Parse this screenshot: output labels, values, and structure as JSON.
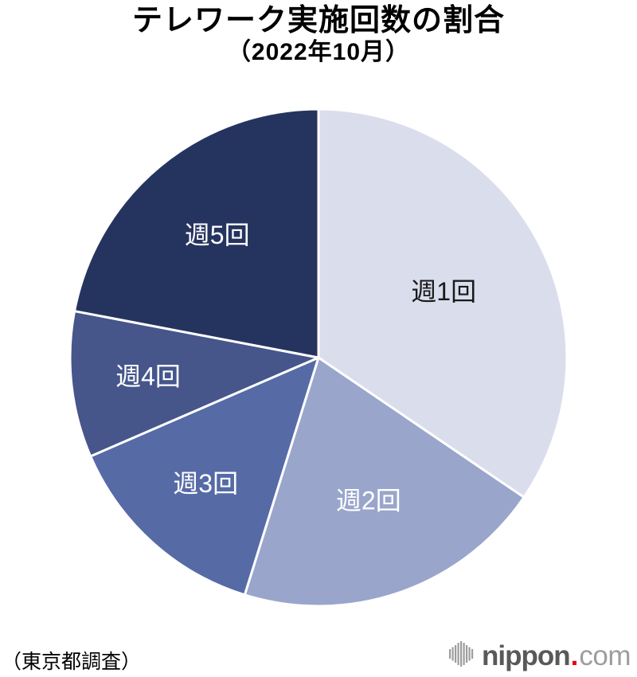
{
  "title": "テレワーク実施回数の割合",
  "subtitle": "（2022年10月）",
  "source_note": "（東京都調査）",
  "logo": {
    "name": "nippon.com",
    "text_main": "nippon",
    "dot": ".",
    "text_suffix": "com",
    "main_color": "#595959",
    "suffix_color": "#9d9d9d",
    "dot_color": "#e60012",
    "icon_color": "#9d9d9d"
  },
  "chart_data": {
    "type": "pie",
    "title": "テレワーク実施回数の割合（2022年10月）",
    "labels": [
      "週1回",
      "週2回",
      "週3回",
      "週4回",
      "週5回"
    ],
    "values": [
      34.5,
      20.3,
      13.7,
      9.5,
      22.0
    ],
    "unit": "%",
    "colors": [
      "#dadeec",
      "#99a5cb",
      "#566aa6",
      "#46568b",
      "#25345f"
    ],
    "label_colors": [
      "#1a1a1a",
      "#ffffff",
      "#ffffff",
      "#ffffff",
      "#ffffff"
    ],
    "start_angle_deg": 0,
    "direction": "clockwise",
    "legend": "none",
    "slice_stroke": "#ffffff",
    "slice_stroke_width": 3,
    "layout": {
      "center": [
        400,
        449
      ],
      "radius": 312,
      "label_radius_fraction": [
        0.57,
        0.61,
        0.68,
        0.69,
        0.64
      ],
      "label_font_size": 32
    }
  }
}
